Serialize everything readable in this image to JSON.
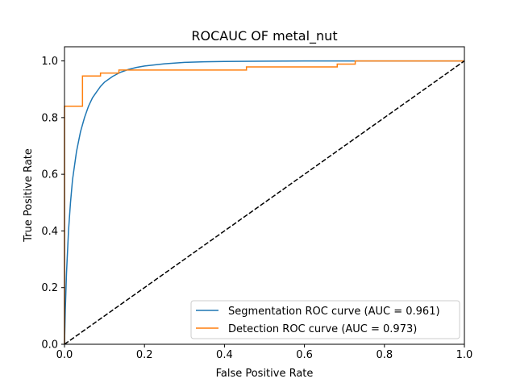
{
  "chart_data": {
    "type": "line",
    "title": "ROCAUC OF metal_nut",
    "xlabel": "False Positive Rate",
    "ylabel": "True Positive Rate",
    "xlim": [
      0,
      1
    ],
    "ylim": [
      0,
      1.05
    ],
    "xticks": [
      0.0,
      0.2,
      0.4,
      0.6,
      0.8,
      1.0
    ],
    "yticks": [
      0.0,
      0.2,
      0.4,
      0.6,
      0.8,
      1.0
    ],
    "xtick_labels": [
      "0.0",
      "0.2",
      "0.4",
      "0.6",
      "0.8",
      "1.0"
    ],
    "ytick_labels": [
      "0.0",
      "0.2",
      "0.4",
      "0.6",
      "0.8",
      "1.0"
    ],
    "grid": false,
    "legend_position": "lower-right",
    "series": [
      {
        "name": "Segmentation ROC curve (AUC = 0.961)",
        "color": "#1f77b4",
        "style": "solid",
        "x": [
          0,
          0.002,
          0.005,
          0.01,
          0.015,
          0.02,
          0.03,
          0.04,
          0.05,
          0.06,
          0.07,
          0.08,
          0.09,
          0.1,
          0.12,
          0.14,
          0.16,
          0.18,
          0.2,
          0.25,
          0.3,
          0.35,
          0.4,
          0.5,
          0.6,
          0.7,
          0.8,
          0.9,
          1.0
        ],
        "y": [
          0,
          0.12,
          0.25,
          0.4,
          0.5,
          0.58,
          0.68,
          0.75,
          0.8,
          0.84,
          0.87,
          0.89,
          0.91,
          0.925,
          0.945,
          0.96,
          0.97,
          0.977,
          0.982,
          0.99,
          0.995,
          0.997,
          0.998,
          0.999,
          1.0,
          1.0,
          1.0,
          1.0,
          1.0
        ]
      },
      {
        "name": "Detection ROC curve (AUC = 0.973)",
        "color": "#ff7f0e",
        "style": "step",
        "x": [
          0,
          0,
          0.045,
          0.045,
          0.09,
          0.09,
          0.136,
          0.136,
          0.455,
          0.455,
          0.682,
          0.682,
          0.727,
          0.727,
          1.0
        ],
        "y": [
          0,
          0.84,
          0.84,
          0.947,
          0.947,
          0.957,
          0.957,
          0.968,
          0.968,
          0.979,
          0.979,
          0.989,
          0.989,
          1.0,
          1.0
        ]
      },
      {
        "name": "",
        "color": "#000000",
        "style": "dashed",
        "x": [
          0,
          1
        ],
        "y": [
          0,
          1
        ]
      }
    ]
  }
}
